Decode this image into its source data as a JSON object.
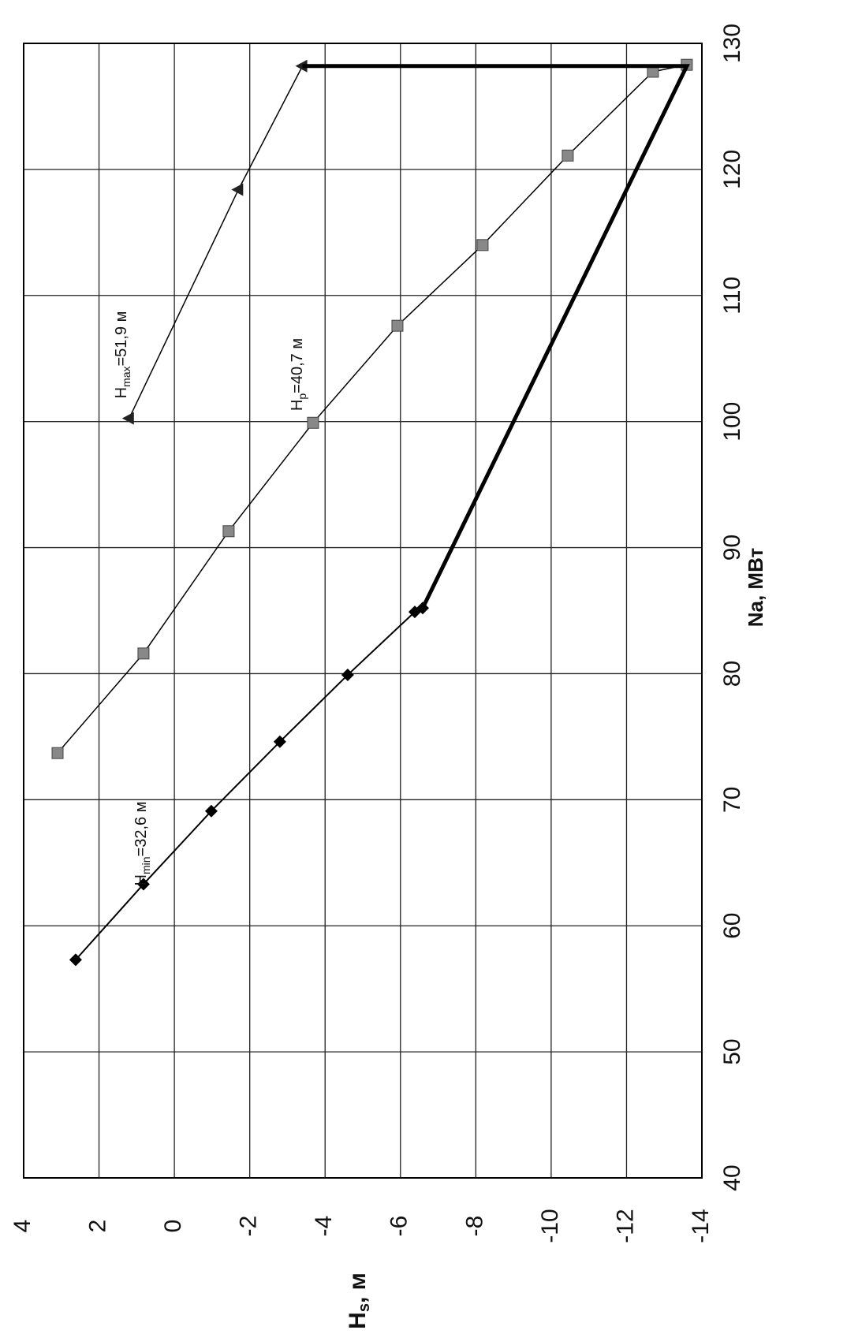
{
  "chart_data": {
    "type": "line",
    "x_label": "Na, МВт",
    "y_label_parts": [
      "H",
      "s",
      ", м"
    ],
    "xlim": [
      40,
      130
    ],
    "xticks": [
      40,
      50,
      60,
      70,
      80,
      90,
      100,
      110,
      120,
      130
    ],
    "ylim": [
      -14,
      4
    ],
    "yticks": [
      4,
      2,
      0,
      -2,
      -4,
      -6,
      -8,
      -10,
      -12,
      -14
    ],
    "grid": true,
    "series": [
      {
        "marker": "diamond",
        "color": "#000000",
        "width": 2,
        "x": [
          57.3,
          63.3,
          69.1,
          74.6,
          79.9,
          84.9,
          85.2
        ],
        "values": [
          2.62,
          0.82,
          -0.98,
          -2.8,
          -4.6,
          -6.38,
          -6.59
        ]
      },
      {
        "marker": "square",
        "color": "#000000",
        "width": 1.5,
        "x": [
          73.7,
          81.6,
          91.3,
          99.9,
          107.6,
          114.0,
          121.1,
          127.75,
          128.3
        ],
        "values": [
          3.1,
          0.82,
          -1.44,
          -3.68,
          -5.92,
          -8.18,
          -10.44,
          -12.7,
          -13.6
        ]
      },
      {
        "marker": "triangle",
        "color": "#000000",
        "width": 1.5,
        "x": [
          100.25,
          118.4,
          128.2
        ],
        "values": [
          1.2,
          -1.7,
          -3.4
        ]
      },
      {
        "marker": "none",
        "color": "#000000",
        "width": 5,
        "x": [
          85.2,
          128.2,
          128.2
        ],
        "values": [
          -6.59,
          -13.6,
          -3.4
        ]
      }
    ],
    "annotations": [
      {
        "parts": [
          "H",
          "min",
          "=32,6 м"
        ],
        "series": 0
      },
      {
        "parts": [
          "H",
          "p",
          "=40,7 м"
        ],
        "series": 1
      },
      {
        "parts": [
          "H",
          "max",
          "=51,9 м"
        ],
        "series": 2
      }
    ]
  }
}
